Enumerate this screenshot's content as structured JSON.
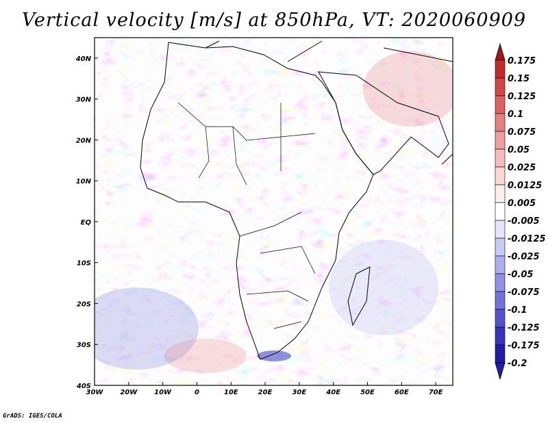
{
  "title": "Vertical velocity [m/s] at 850hPa, VT: 2020060909",
  "credit": "GrADS: IGES/COLA",
  "map": {
    "lon_range": [
      -30,
      75
    ],
    "lat_range": [
      -40,
      45
    ],
    "lon_ticks": [
      {
        "value": -30,
        "label": "30W"
      },
      {
        "value": -20,
        "label": "20W"
      },
      {
        "value": -10,
        "label": "10W"
      },
      {
        "value": 0,
        "label": "0"
      },
      {
        "value": 10,
        "label": "10E"
      },
      {
        "value": 20,
        "label": "20E"
      },
      {
        "value": 30,
        "label": "30E"
      },
      {
        "value": 40,
        "label": "40E"
      },
      {
        "value": 50,
        "label": "50E"
      },
      {
        "value": 60,
        "label": "60E"
      },
      {
        "value": 70,
        "label": "70E"
      }
    ],
    "lat_ticks": [
      {
        "value": 40,
        "label": "40N"
      },
      {
        "value": 30,
        "label": "30N"
      },
      {
        "value": 20,
        "label": "20N"
      },
      {
        "value": 10,
        "label": "10N"
      },
      {
        "value": 0,
        "label": "EQ"
      },
      {
        "value": -10,
        "label": "10S"
      },
      {
        "value": -20,
        "label": "20S"
      },
      {
        "value": -30,
        "label": "30S"
      },
      {
        "value": -40,
        "label": "40S"
      }
    ]
  },
  "colorbar": {
    "levels": [
      {
        "label": "0.175",
        "color": "#a0141e"
      },
      {
        "label": "0.15",
        "color": "#c52a2a"
      },
      {
        "label": "0.125",
        "color": "#d64545"
      },
      {
        "label": "0.1",
        "color": "#e06060"
      },
      {
        "label": "0.075",
        "color": "#e87f7f"
      },
      {
        "label": "0.05",
        "color": "#ef9d9d"
      },
      {
        "label": "0.025",
        "color": "#f5bcbc"
      },
      {
        "label": "0.0125",
        "color": "#fad7d7"
      },
      {
        "label": "0.005",
        "color": "#fdeeee"
      },
      {
        "label": "-0.005",
        "color": "#ffffff"
      },
      {
        "label": "-0.0125",
        "color": "#e4e4fb"
      },
      {
        "label": "-0.025",
        "color": "#c9c9f5"
      },
      {
        "label": "-0.05",
        "color": "#aeaeef"
      },
      {
        "label": "-0.075",
        "color": "#9090e6"
      },
      {
        "label": "-0.1",
        "color": "#7272dc"
      },
      {
        "label": "-0.125",
        "color": "#5353cf"
      },
      {
        "label": "-0.175",
        "color": "#3434bf"
      },
      {
        "label": "-0.2",
        "color": "#1e1ea8"
      }
    ],
    "top_color": "#a0141e",
    "bottom_color": "#1e1ea8"
  }
}
